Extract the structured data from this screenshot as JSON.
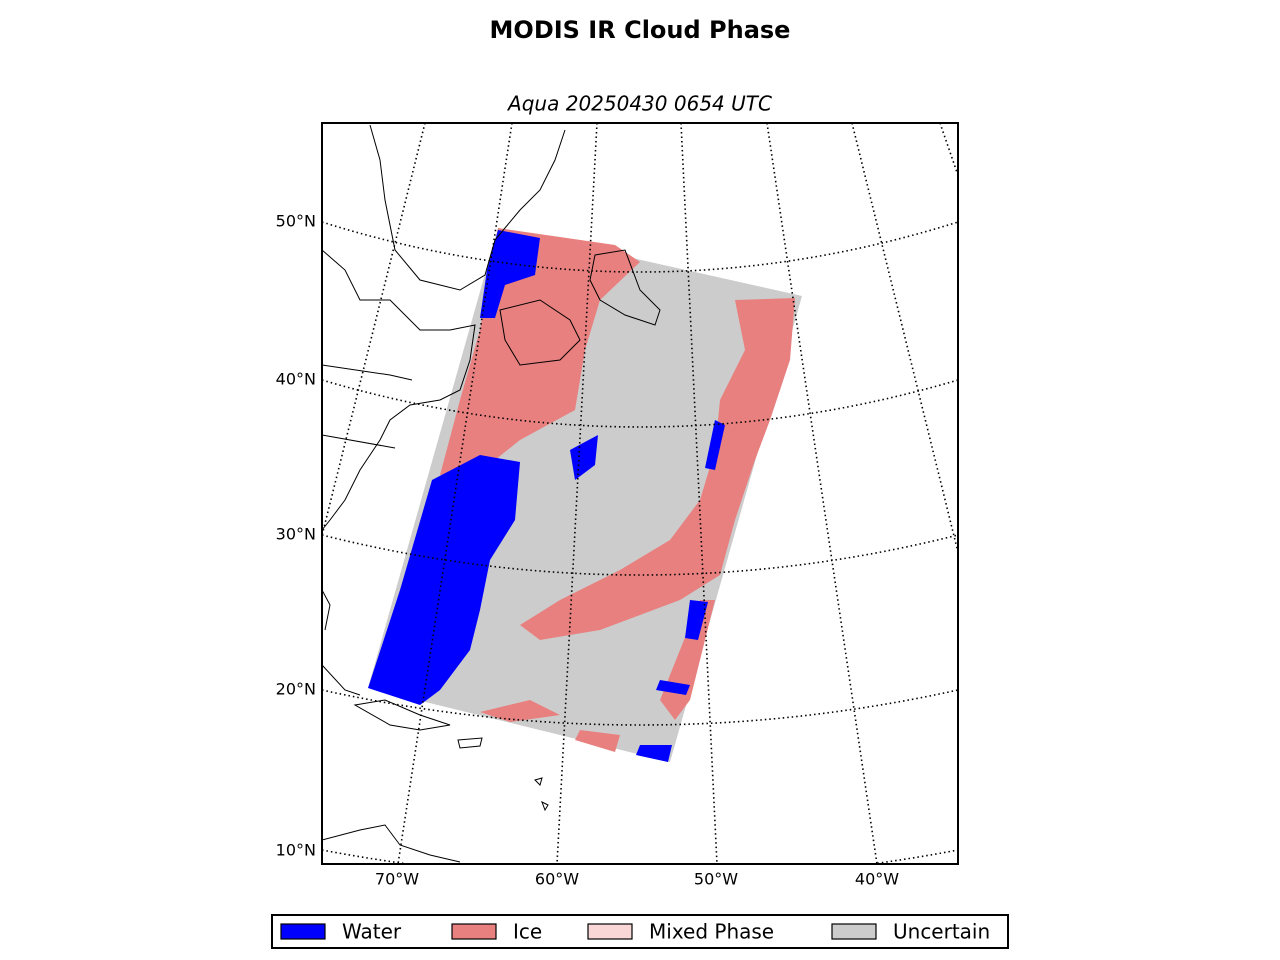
{
  "title": "MODIS IR Cloud Phase",
  "subtitle": "Aqua 20250430 0654 UTC",
  "lat_labels": [
    "50°N",
    "40°N",
    "30°N",
    "20°N",
    "10°N"
  ],
  "lon_labels": [
    "70°W",
    "60°W",
    "50°W",
    "40°W"
  ],
  "legend": [
    {
      "label": "Water",
      "color": "#0000ff"
    },
    {
      "label": "Ice",
      "color": "#e8807f"
    },
    {
      "label": "Mixed Phase",
      "color": "#f8d7d6"
    },
    {
      "label": "Uncertain",
      "color": "#cccccc"
    }
  ]
}
